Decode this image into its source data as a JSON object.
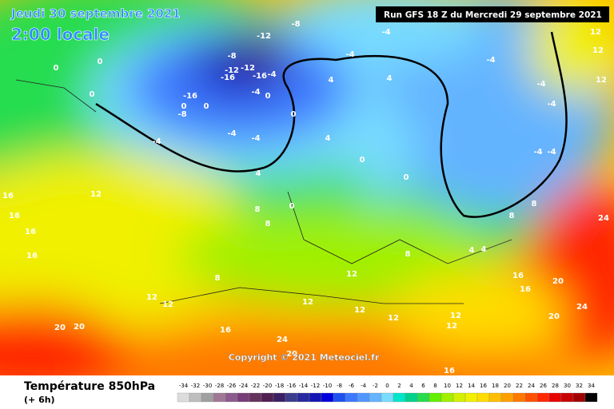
{
  "header": {
    "date": "Jeudi 30 septembre 2021",
    "local_time": "2:00 locale",
    "run": "Run GFS 18 Z du Mercredi 29 septembre 2021"
  },
  "map": {
    "copyright": "Copyright © 2021 Meteociel.fr",
    "labels": [
      "-8",
      "-12",
      "-8",
      "-12",
      "-12",
      "-16",
      "-16",
      "-4",
      "-16",
      "0",
      "0",
      "-4",
      "0",
      "-8",
      "-4",
      "-4",
      "-4",
      "0",
      "0",
      "0",
      "0",
      "-4",
      "4",
      "4",
      "-4",
      "-4",
      "-4",
      "-4",
      "-4",
      "-4",
      "4",
      "0",
      "0",
      "4",
      "8",
      "0",
      "8",
      "12",
      "16",
      "16",
      "16",
      "16",
      "8",
      "12",
      "12",
      "12",
      "12",
      "8",
      "4",
      "4",
      "8",
      "8",
      "16",
      "16",
      "20",
      "24",
      "24",
      "20",
      "12",
      "12",
      "12",
      "12",
      "16",
      "20",
      "20",
      "24",
      "20",
      "16",
      "12",
      "12",
      "12"
    ]
  },
  "footer": {
    "title": "Température 850hPa",
    "step": "(+ 6h)"
  },
  "legend": {
    "values": [
      -34,
      -32,
      -30,
      -28,
      -26,
      -24,
      -22,
      -20,
      -18,
      -16,
      -14,
      -12,
      -10,
      -8,
      -6,
      -4,
      -2,
      0,
      2,
      4,
      6,
      8,
      10,
      12,
      14,
      16,
      18,
      20,
      22,
      24,
      26,
      28,
      30,
      32,
      34
    ],
    "colors": [
      "#dcdcdc",
      "#bebebe",
      "#a0a0a0",
      "#a07896",
      "#8c5a8c",
      "#783c78",
      "#64325a",
      "#501e50",
      "#3c1e64",
      "#3c3c8c",
      "#2828a0",
      "#1414b4",
      "#0000dc",
      "#1e50f0",
      "#3c78ff",
      "#5096ff",
      "#64b4ff",
      "#78dcff",
      "#00e6c8",
      "#00d28c",
      "#28dc50",
      "#64f000",
      "#a0f000",
      "#d2f000",
      "#f0f000",
      "#ffdc00",
      "#ffbe00",
      "#ffa000",
      "#ff7800",
      "#ff5000",
      "#ff2800",
      "#e60000",
      "#c80000",
      "#a00000",
      "#000000"
    ]
  }
}
